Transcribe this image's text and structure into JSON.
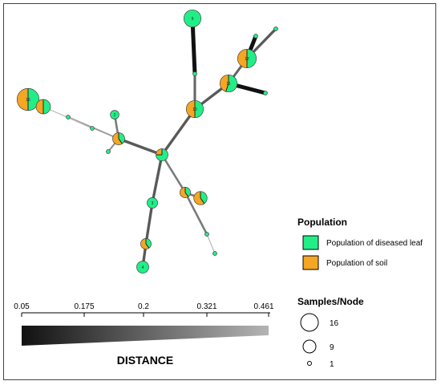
{
  "colors": {
    "diseased_leaf": "#22ee88",
    "soil": "#f5a623",
    "edge_dark": "#111111",
    "edge_light": "#bbbbbb"
  },
  "legend": {
    "population_title": "Population",
    "population_items": [
      {
        "label": "Population of diseased leaf",
        "color_key": "diseased_leaf"
      },
      {
        "label": "Population of soil",
        "color_key": "soil"
      }
    ],
    "samples_title": "Samples/Node",
    "samples_items": [
      {
        "label": "16",
        "samples": 16
      },
      {
        "label": "9",
        "samples": 9
      },
      {
        "label": "1",
        "samples": 1
      }
    ]
  },
  "distance": {
    "title": "DISTANCE",
    "ticks": [
      "0.05",
      "0.175",
      "0.2",
      "0.321",
      "0.461"
    ]
  },
  "network": {
    "nodes": [
      {
        "id": "9",
        "label": "9",
        "samples": 9,
        "leaf": 1.0
      },
      {
        "id": "n2",
        "label": "",
        "samples": 1,
        "leaf": 1.0
      },
      {
        "id": "10",
        "label": "10",
        "samples": 9,
        "leaf": 0.5
      },
      {
        "id": "11",
        "label": "11",
        "samples": 9,
        "leaf": 0.55
      },
      {
        "id": "12",
        "label": "12",
        "samples": 11,
        "leaf": 0.5
      },
      {
        "id": "n3",
        "label": "",
        "samples": 1,
        "leaf": 1.0
      },
      {
        "id": "n4",
        "label": "",
        "samples": 1,
        "leaf": 1.0
      },
      {
        "id": "n5",
        "label": "",
        "samples": 1,
        "leaf": 1.0
      },
      {
        "id": "hub",
        "label": "",
        "samples": 4,
        "leaf": 0.75
      },
      {
        "id": "16",
        "label": "16",
        "samples": 16,
        "leaf": 0.5
      },
      {
        "id": "17",
        "label": "",
        "samples": 6,
        "leaf": 0.5
      },
      {
        "id": "n6",
        "label": "",
        "samples": 1,
        "leaf": 1.0
      },
      {
        "id": "n7",
        "label": "",
        "samples": 1,
        "leaf": 1.0
      },
      {
        "id": "n8",
        "label": "2",
        "samples": 2,
        "leaf": 1.0
      },
      {
        "id": "j2",
        "label": "",
        "samples": 4,
        "leaf": 0.4
      },
      {
        "id": "n9",
        "label": "",
        "samples": 1,
        "leaf": 1.0
      },
      {
        "id": "n10",
        "label": "3",
        "samples": 3,
        "leaf": 1.0
      },
      {
        "id": "j3",
        "label": "",
        "samples": 3,
        "leaf": 0.4
      },
      {
        "id": "n11",
        "label": "4",
        "samples": 4,
        "leaf": 1.0
      },
      {
        "id": "j4",
        "label": "",
        "samples": 3,
        "leaf": 0.4
      },
      {
        "id": "j5",
        "label": "",
        "samples": 5,
        "leaf": 0.4
      },
      {
        "id": "n12",
        "label": "",
        "samples": 1,
        "leaf": 1.0
      },
      {
        "id": "n13",
        "label": "",
        "samples": 1,
        "leaf": 1.0
      }
    ],
    "edges": [
      {
        "from": "9",
        "to": "n2",
        "distance": 0.05
      },
      {
        "from": "n2",
        "to": "10",
        "distance": 0.25
      },
      {
        "from": "10",
        "to": "11",
        "distance": 0.22
      },
      {
        "from": "11",
        "to": "12",
        "distance": 0.25
      },
      {
        "from": "12",
        "to": "n3",
        "distance": 0.22
      },
      {
        "from": "12",
        "to": "n4",
        "distance": 0.05
      },
      {
        "from": "11",
        "to": "n5",
        "distance": 0.05
      },
      {
        "from": "10",
        "to": "hub",
        "distance": 0.22
      },
      {
        "from": "hub",
        "to": "j2",
        "distance": 0.22
      },
      {
        "from": "j2",
        "to": "n8",
        "distance": 0.3
      },
      {
        "from": "j2",
        "to": "n9",
        "distance": 0.35
      },
      {
        "from": "j2",
        "to": "n6",
        "distance": 0.37
      },
      {
        "from": "n6",
        "to": "n7",
        "distance": 0.42
      },
      {
        "from": "n7",
        "to": "17",
        "distance": 0.44
      },
      {
        "from": "17",
        "to": "16",
        "distance": 0.2
      },
      {
        "from": "hub",
        "to": "n10",
        "distance": 0.22
      },
      {
        "from": "n10",
        "to": "j3",
        "distance": 0.22
      },
      {
        "from": "j3",
        "to": "n11",
        "distance": 0.22
      },
      {
        "from": "hub",
        "to": "j4",
        "distance": 0.3
      },
      {
        "from": "j4",
        "to": "j5",
        "distance": 0.3
      },
      {
        "from": "j4",
        "to": "n12",
        "distance": 0.3
      },
      {
        "from": "n12",
        "to": "n13",
        "distance": 0.44
      }
    ]
  }
}
